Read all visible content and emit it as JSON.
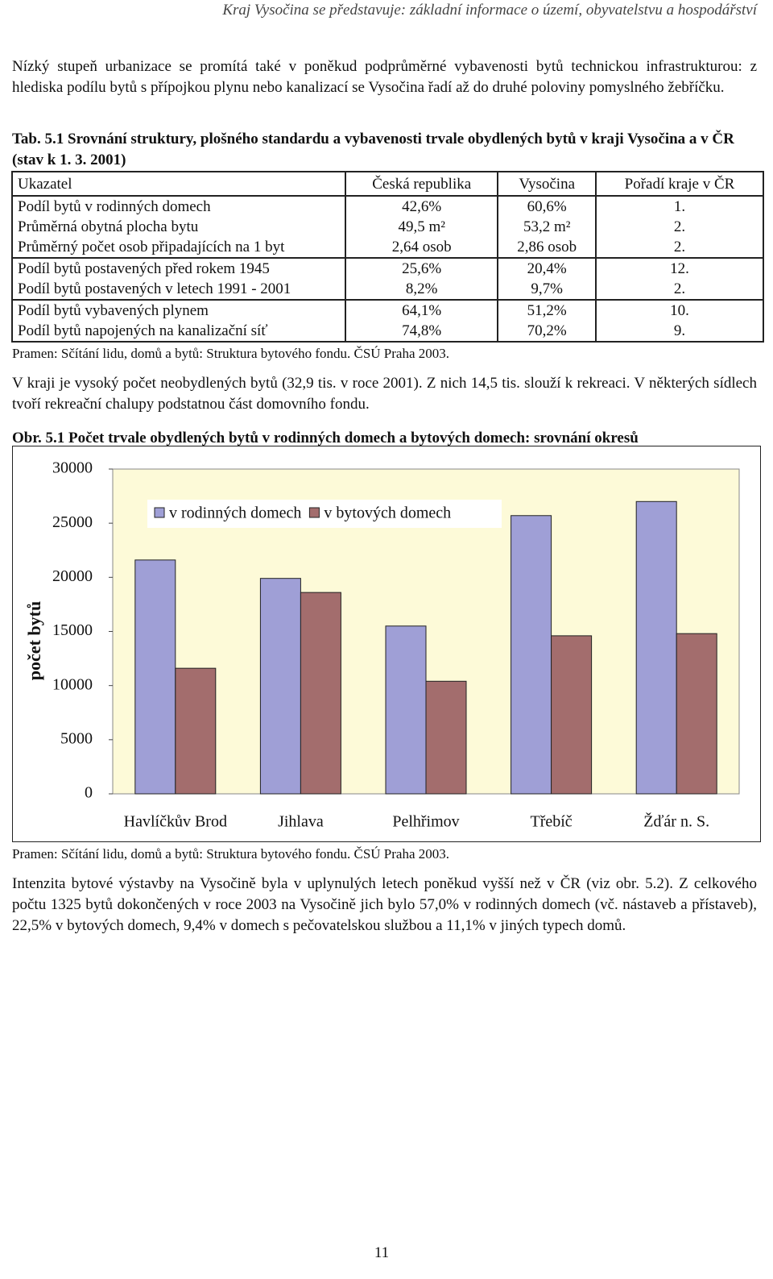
{
  "header": {
    "title": "Kraj Vysočina se představuje: základní informace o území, obyvatelstvu a hospodářství"
  },
  "paragraphs": [
    "Nízký stupeň urbanizace se promítá také v poněkud podprůměrné vybavenosti bytů technickou infrastrukturou: z hlediska podílu bytů s přípojkou plynu nebo kanalizací se Vysočina řadí až do druhé poloviny pomyslného žebříčku.",
    "V kraji je vysoký počet neobydlených bytů (32,9 tis. v roce 2001). Z nich 14,5 tis. slouží k rekreaci. V některých sídlech tvoří rekreační chalupy podstatnou část domovního fondu.",
    "Intenzita bytové výstavby na Vysočině byla v uplynulých letech poněkud vyšší než v ČR (viz obr. 5.2). Z celkového počtu 1325 bytů dokončených v roce 2003 na Vysočině jich bylo 57,0% v rodinných domech (vč. nástaveb a přístaveb), 22,5% v bytových domech, 9,4% v domech s pečovatelskou službou a 11,1% v jiných typech domů."
  ],
  "table": {
    "caption": "Tab. 5.1 Srovnání struktury, plošného standardu a vybavenosti trvale obydlených bytů v kraji Vysočina a v ČR (stav k 1. 3. 2001)",
    "headers": [
      "Ukazatel",
      "Česká republika",
      "Vysočina",
      "Pořadí kraje v ČR"
    ],
    "groups": [
      [
        [
          "Podíl bytů v rodinných domech",
          "42,6%",
          "60,6%",
          "1."
        ],
        [
          "Průměrná obytná plocha bytu",
          "49,5 m²",
          "53,2 m²",
          "2."
        ],
        [
          "Průměrný počet osob připadajících na 1 byt",
          "2,64 osob",
          "2,86 osob",
          "2."
        ]
      ],
      [
        [
          "Podíl bytů postavených před rokem 1945",
          "25,6%",
          "20,4%",
          "12."
        ],
        [
          "Podíl bytů postavených v letech 1991 - 2001",
          "8,2%",
          "9,7%",
          "2."
        ]
      ],
      [
        [
          "Podíl bytů vybavených plynem",
          "64,1%",
          "51,2%",
          "10."
        ],
        [
          "Podíl bytů napojených na kanalizační síť",
          "74,8%",
          "70,2%",
          "9."
        ]
      ]
    ],
    "source": "Pramen: Sčítání lidu, domů a bytů: Struktura bytového fondu. ČSÚ Praha 2003."
  },
  "figure": {
    "caption": "Obr. 5.1 Počet trvale obydlených bytů v rodinných domech a bytových domech: srovnání okresů",
    "source": "Pramen: Sčítání lidu, domů a bytů: Struktura bytového fondu. ČSÚ Praha 2003.",
    "chart_data": {
      "type": "bar",
      "y_label": "počet bytů",
      "categories": [
        "Havlíčkův Brod",
        "Jihlava",
        "Pelhřimov",
        "Třebíč",
        "Žďár n. S."
      ],
      "series": [
        {
          "name": "v rodinných domech",
          "color": "#9f9fd6",
          "values": [
            21600,
            19900,
            15500,
            25700,
            27000
          ]
        },
        {
          "name": "v bytových domech",
          "color": "#a36d6d",
          "values": [
            11600,
            18600,
            10400,
            14600,
            14800
          ]
        }
      ],
      "ylim": [
        0,
        30000
      ],
      "yticks": [
        0,
        5000,
        10000,
        15000,
        20000,
        25000,
        30000
      ],
      "grid": false,
      "legend": "top",
      "background": "#fdfad8"
    }
  },
  "page_number": "11"
}
